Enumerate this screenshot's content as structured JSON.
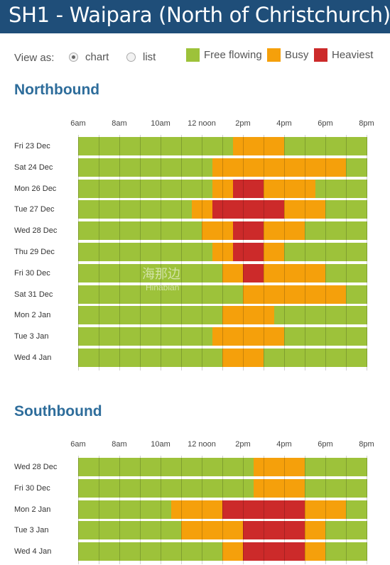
{
  "header": {
    "title": "SH1 - Waipara (North of Christchurch)"
  },
  "view_as": {
    "label": "View as:",
    "options": [
      {
        "label": "chart",
        "selected": true
      },
      {
        "label": "list",
        "selected": false
      }
    ]
  },
  "legend": [
    {
      "label": "Free flowing",
      "color": "#9dc23a"
    },
    {
      "label": "Busy",
      "color": "#f5a00b"
    },
    {
      "label": "Heaviest",
      "color": "#cc2a2a"
    }
  ],
  "time_labels": [
    "6am",
    "8am",
    "10am",
    "12 noon",
    "2pm",
    "4pm",
    "6pm",
    "8pm"
  ],
  "chart_data": [
    {
      "type": "heatmap",
      "title": "Northbound",
      "x": [
        "6am",
        "6:30am",
        "7am",
        "7:30am",
        "8am",
        "8:30am",
        "9am",
        "9:30am",
        "10am",
        "10:30am",
        "11am",
        "11:30am",
        "12 noon",
        "12:30pm",
        "1pm",
        "1:30pm",
        "2pm",
        "2:30pm",
        "3pm",
        "3:30pm",
        "4pm",
        "4:30pm",
        "5pm",
        "5:30pm",
        "6pm",
        "6:30pm",
        "7pm",
        "7:30pm"
      ],
      "levels": [
        "Free flowing",
        "Busy",
        "Heaviest"
      ],
      "rows": [
        {
          "label": "Fri 23 Dec",
          "busy": [
            [
              15,
              20
            ]
          ],
          "heaviest": []
        },
        {
          "label": "Sat 24 Dec",
          "busy": [
            [
              13,
              26
            ]
          ],
          "heaviest": []
        },
        {
          "label": "Mon 26 Dec",
          "busy": [
            [
              13,
              23
            ]
          ],
          "heaviest": [
            [
              15,
              18
            ]
          ]
        },
        {
          "label": "Tue 27 Dec",
          "busy": [
            [
              11,
              24
            ]
          ],
          "heaviest": [
            [
              13,
              20
            ]
          ]
        },
        {
          "label": "Wed 28 Dec",
          "busy": [
            [
              12,
              22
            ]
          ],
          "heaviest": [
            [
              15,
              18
            ]
          ]
        },
        {
          "label": "Thu 29 Dec",
          "busy": [
            [
              13,
              20
            ]
          ],
          "heaviest": [
            [
              15,
              18
            ]
          ]
        },
        {
          "label": "Fri 30 Dec",
          "busy": [
            [
              14,
              24
            ]
          ],
          "heaviest": [
            [
              16,
              18
            ]
          ]
        },
        {
          "label": "Sat 31 Dec",
          "busy": [
            [
              16,
              26
            ]
          ],
          "heaviest": []
        },
        {
          "label": "Mon 2 Jan",
          "busy": [
            [
              14,
              19
            ]
          ],
          "heaviest": []
        },
        {
          "label": "Tue 3 Jan",
          "busy": [
            [
              13,
              20
            ]
          ],
          "heaviest": []
        },
        {
          "label": "Wed 4 Jan",
          "busy": [
            [
              14,
              18
            ]
          ],
          "heaviest": []
        }
      ]
    },
    {
      "type": "heatmap",
      "title": "Southbound",
      "x": [
        "6am",
        "6:30am",
        "7am",
        "7:30am",
        "8am",
        "8:30am",
        "9am",
        "9:30am",
        "10am",
        "10:30am",
        "11am",
        "11:30am",
        "12 noon",
        "12:30pm",
        "1pm",
        "1:30pm",
        "2pm",
        "2:30pm",
        "3pm",
        "3:30pm",
        "4pm",
        "4:30pm",
        "5pm",
        "5:30pm",
        "6pm",
        "6:30pm",
        "7pm",
        "7:30pm"
      ],
      "levels": [
        "Free flowing",
        "Busy",
        "Heaviest"
      ],
      "rows": [
        {
          "label": "Wed 28 Dec",
          "busy": [
            [
              17,
              22
            ]
          ],
          "heaviest": []
        },
        {
          "label": "Fri 30 Dec",
          "busy": [
            [
              17,
              22
            ]
          ],
          "heaviest": []
        },
        {
          "label": "Mon 2 Jan",
          "busy": [
            [
              9,
              26
            ]
          ],
          "heaviest": [
            [
              14,
              22
            ]
          ]
        },
        {
          "label": "Tue 3 Jan",
          "busy": [
            [
              10,
              24
            ]
          ],
          "heaviest": [
            [
              16,
              22
            ]
          ]
        },
        {
          "label": "Wed 4 Jan",
          "busy": [
            [
              14,
              24
            ]
          ],
          "heaviest": [
            [
              16,
              22
            ]
          ]
        }
      ]
    }
  ],
  "watermark": {
    "line1": "海那边",
    "line2": "Hinabian"
  }
}
